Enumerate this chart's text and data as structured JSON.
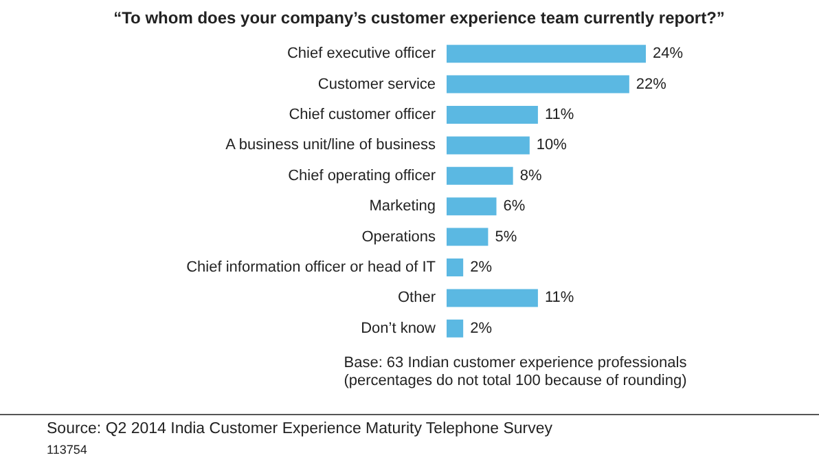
{
  "chart_data": {
    "type": "bar",
    "orientation": "horizontal",
    "title": "“To whom does your company’s customer experience team currently report?”",
    "categories": [
      "Chief executive officer",
      "Customer service",
      "Chief customer officer",
      "A business unit/line of business",
      "Chief operating officer",
      "Marketing",
      "Operations",
      "Chief information officer or head of IT",
      "Other",
      "Don’t know"
    ],
    "values": [
      24,
      22,
      11,
      10,
      8,
      6,
      5,
      2,
      11,
      2
    ],
    "value_labels": [
      "24%",
      "22%",
      "11%",
      "10%",
      "8%",
      "6%",
      "5%",
      "2%",
      "11%",
      "2%"
    ],
    "color": "#5bb8e2",
    "annotations": [
      "Base: 63 Indian customer experience professionals",
      "(percentages do not total 100 because of rounding)",
      "Source: Q2 2014 India Customer Experience Maturity Telephone Survey",
      "113754"
    ]
  }
}
